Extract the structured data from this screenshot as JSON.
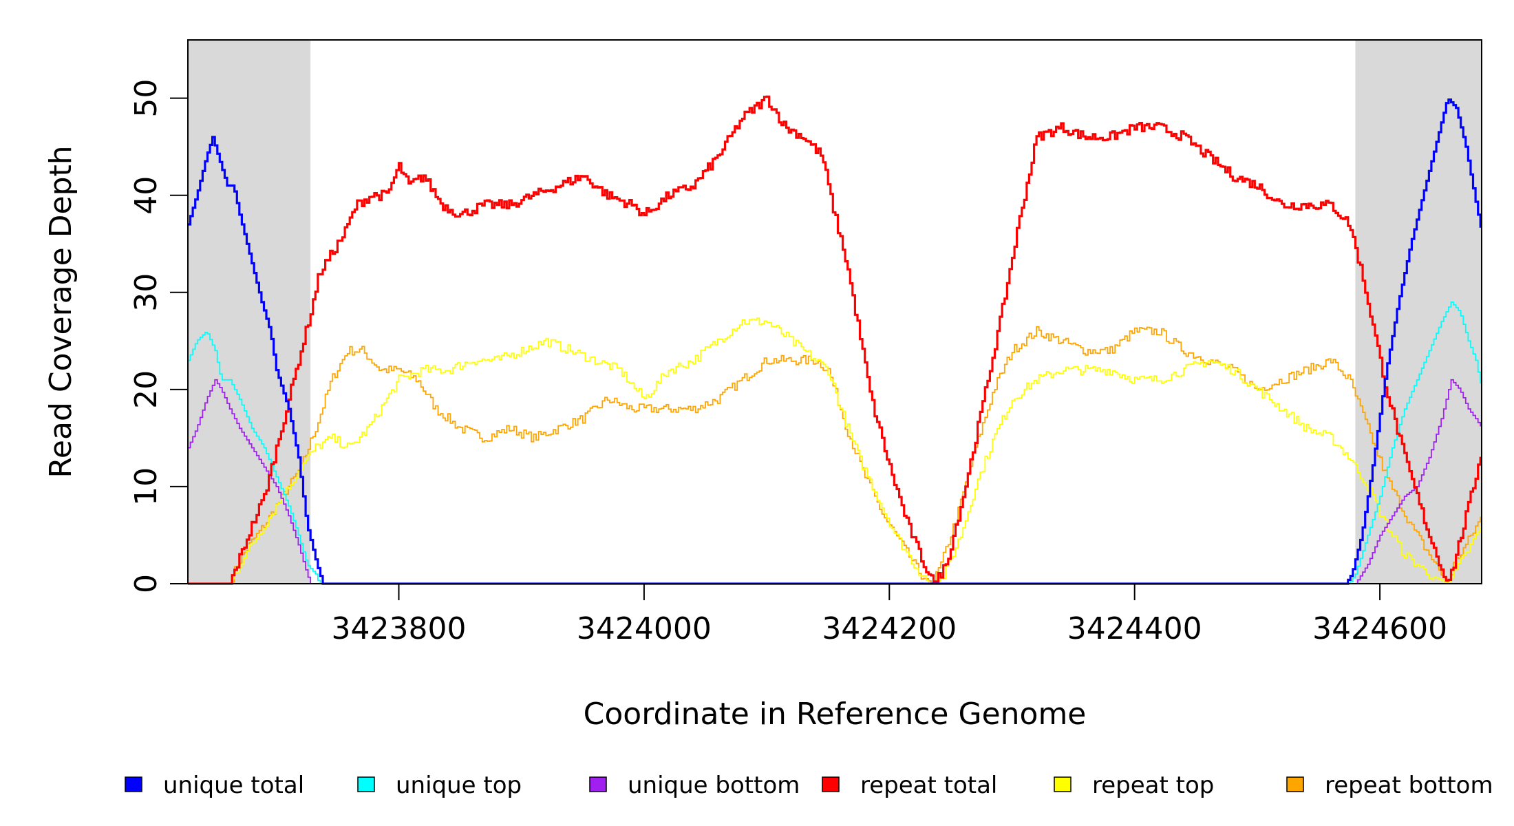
{
  "chart_data": {
    "type": "line",
    "title": "",
    "xlabel": "Coordinate in Reference Genome",
    "ylabel": "Read Coverage Depth",
    "xlim": [
      3423628,
      3424683
    ],
    "ylim": [
      0,
      56
    ],
    "x_ticks": [
      3423800,
      3424000,
      3424200,
      3424400,
      3424600
    ],
    "x_tick_labels": [
      "3423800",
      "3424000",
      "3424200",
      "3424400",
      "3424600"
    ],
    "y_ticks": [
      0,
      10,
      20,
      30,
      40,
      50
    ],
    "y_tick_labels": [
      "0",
      "10",
      "20",
      "30",
      "40",
      "50"
    ],
    "shaded_regions": [
      [
        3423628,
        3423728
      ],
      [
        3424580,
        3424683
      ]
    ],
    "shade_color": "#d9d9d9",
    "grid": false,
    "legend_position": "bottom",
    "legend": [
      {
        "label": "unique total",
        "color": "#0000ff"
      },
      {
        "label": "unique top",
        "color": "#00ffff"
      },
      {
        "label": "unique bottom",
        "color": "#a020f0"
      },
      {
        "label": "repeat total",
        "color": "#ff0000"
      },
      {
        "label": "repeat top",
        "color": "#ffff00"
      },
      {
        "label": "repeat bottom",
        "color": "#ffa500"
      }
    ],
    "series": [
      {
        "name": "unique total",
        "color": "#0000ff",
        "thick": true,
        "noise": 0,
        "x": [
          3423628,
          3423635,
          3423643,
          3423648,
          3423655,
          3423660,
          3423665,
          3423670,
          3423680,
          3423688,
          3423695,
          3423700,
          3423710,
          3423718,
          3423725,
          3423733,
          3423738,
          3424572,
          3424577,
          3424585,
          3424595,
          3424605,
          3424615,
          3424625,
          3424635,
          3424645,
          3424655,
          3424662,
          3424670,
          3424677,
          3424683
        ],
        "y": [
          37,
          40,
          44,
          46,
          43,
          41,
          41,
          38,
          33,
          29,
          26,
          22,
          18,
          13,
          6,
          2,
          0,
          0,
          1,
          5,
          13,
          22,
          29,
          35,
          40,
          45,
          50,
          49,
          45,
          40,
          36
        ]
      },
      {
        "name": "unique top",
        "color": "#00ffff",
        "thick": false,
        "noise": 0,
        "x": [
          3423628,
          3423635,
          3423643,
          3423650,
          3423655,
          3423662,
          3423670,
          3423680,
          3423690,
          3423700,
          3423710,
          3423718,
          3423725,
          3423732,
          3423735,
          3424575,
          3424580,
          3424590,
          3424600,
          3424610,
          3424620,
          3424630,
          3424640,
          3424650,
          3424658,
          3424665,
          3424672,
          3424678,
          3424683
        ],
        "y": [
          23,
          25,
          26,
          24,
          21,
          21,
          19,
          16,
          14,
          11,
          8,
          5,
          2,
          1,
          0,
          0,
          1,
          5,
          9,
          14,
          18,
          21,
          24,
          27,
          29,
          28,
          25,
          23,
          20
        ],
        "y_shift": 0
      },
      {
        "name": "unique bottom",
        "color": "#a020f0",
        "thick": false,
        "noise": 0,
        "x": [
          3423628,
          3423635,
          3423643,
          3423650,
          3423655,
          3423662,
          3423670,
          3423680,
          3423690,
          3423700,
          3423710,
          3423718,
          3423725,
          3423728,
          3424580,
          3424590,
          3424600,
          3424610,
          3424620,
          3424630,
          3424640,
          3424650,
          3424658,
          3424665,
          3424672,
          3424678,
          3424683
        ],
        "y": [
          14,
          16,
          19,
          21,
          20,
          18,
          16,
          14,
          12,
          10,
          7,
          4,
          1,
          0,
          0,
          2,
          5,
          7,
          9,
          10,
          13,
          17,
          21,
          20,
          18,
          17,
          16
        ]
      },
      {
        "name": "repeat total",
        "color": "#ff0000",
        "thick": true,
        "noise": 0.5,
        "x": [
          3423628,
          3423662,
          3423668,
          3423680,
          3423690,
          3423700,
          3423710,
          3423720,
          3423728,
          3423735,
          3423745,
          3423755,
          3423765,
          3423778,
          3423790,
          3423800,
          3423808,
          3423820,
          3423835,
          3423850,
          3423870,
          3423890,
          3423910,
          3423930,
          3423950,
          3423970,
          3423990,
          3424000,
          3424020,
          3424040,
          3424060,
          3424080,
          3424090,
          3424100,
          3424115,
          3424130,
          3424145,
          3424155,
          3424165,
          3424175,
          3424185,
          3424200,
          3424215,
          3424228,
          3424237,
          3424246,
          3424260,
          3424275,
          3424290,
          3424305,
          3424320,
          3424340,
          3424360,
          3424380,
          3424400,
          3424420,
          3424440,
          3424460,
          3424480,
          3424500,
          3424520,
          3424540,
          3424560,
          3424575,
          3424585,
          3424595,
          3424605,
          3424620,
          3424640,
          3424655,
          3424660,
          3424668,
          3424676,
          3424683
        ],
        "y": [
          0,
          0,
          2,
          6,
          9,
          14,
          19,
          24,
          28,
          32,
          34,
          36,
          39,
          40,
          40,
          43,
          41,
          42,
          39,
          38,
          39,
          39,
          40,
          41,
          42,
          40,
          39,
          38,
          40,
          41,
          44,
          48,
          49,
          50,
          47,
          46,
          44,
          38,
          33,
          26,
          19,
          12,
          6,
          2,
          0,
          2,
          9,
          18,
          27,
          37,
          46,
          47,
          46,
          46,
          47,
          47,
          46,
          44,
          42,
          41,
          39,
          39,
          39,
          37,
          32,
          26,
          20,
          13,
          5,
          0,
          2,
          6,
          10,
          14
        ]
      },
      {
        "name": "repeat top",
        "color": "#ffff00",
        "thick": false,
        "noise": 0.5,
        "x": [
          3423628,
          3423662,
          3423670,
          3423680,
          3423690,
          3423700,
          3423710,
          3423720,
          3423732,
          3423745,
          3423760,
          3423775,
          3423790,
          3423800,
          3423820,
          3423840,
          3423860,
          3423880,
          3423900,
          3423920,
          3423940,
          3423960,
          3423980,
          3424000,
          3424020,
          3424040,
          3424060,
          3424080,
          3424100,
          3424120,
          3424140,
          3424150,
          3424160,
          3424175,
          3424190,
          3424205,
          3424220,
          3424232,
          3424238,
          3424245,
          3424258,
          3424270,
          3424285,
          3424300,
          3424320,
          3424340,
          3424360,
          3424380,
          3424400,
          3424420,
          3424440,
          3424460,
          3424480,
          3424500,
          3424520,
          3424540,
          3424560,
          3424575,
          3424590,
          3424605,
          3424620,
          3424640,
          3424655,
          3424660,
          3424670,
          3424683
        ],
        "y": [
          0,
          0,
          2,
          4,
          6,
          8,
          10,
          12,
          14,
          15,
          14,
          16,
          19,
          21,
          22,
          22,
          23,
          23,
          24,
          25,
          24,
          23,
          22,
          19,
          22,
          23,
          25,
          27,
          27,
          25,
          23,
          22,
          18,
          13,
          9,
          5,
          2,
          0,
          0,
          1,
          5,
          10,
          15,
          19,
          21,
          22,
          22,
          22,
          21,
          21,
          22,
          23,
          22,
          20,
          18,
          16,
          15,
          13,
          10,
          6,
          3,
          1,
          0,
          1,
          3,
          6
        ]
      },
      {
        "name": "repeat bottom",
        "color": "#ffa500",
        "thick": false,
        "noise": 0.5,
        "x": [
          3423628,
          3423662,
          3423668,
          3423678,
          3423690,
          3423700,
          3423710,
          3423720,
          3423732,
          3423745,
          3423758,
          3423770,
          3423785,
          3423800,
          3423815,
          3423830,
          3423850,
          3423870,
          3423890,
          3423910,
          3423930,
          3423950,
          3423970,
          3423990,
          3424000,
          3424020,
          3424040,
          3424060,
          3424080,
          3424100,
          3424120,
          3424140,
          3424150,
          3424165,
          3424180,
          3424195,
          3424210,
          3424225,
          3424235,
          3424242,
          3424255,
          3424270,
          3424285,
          3424300,
          3424320,
          3424340,
          3424360,
          3424380,
          3424400,
          3424420,
          3424440,
          3424460,
          3424480,
          3424500,
          3424520,
          3424540,
          3424560,
          3424575,
          3424590,
          3424605,
          3424625,
          3424645,
          3424655,
          3424660,
          3424670,
          3424683
        ],
        "y": [
          0,
          0,
          2,
          4,
          6,
          8,
          10,
          12,
          16,
          21,
          24,
          24,
          22,
          22,
          21,
          18,
          16,
          15,
          16,
          15,
          16,
          17,
          19,
          18,
          18,
          18,
          18,
          19,
          21,
          23,
          23,
          23,
          22,
          16,
          11,
          7,
          4,
          1,
          0,
          2,
          7,
          14,
          20,
          24,
          26,
          25,
          24,
          24,
          26,
          26,
          24,
          23,
          22,
          20,
          21,
          22,
          23,
          21,
          16,
          11,
          6,
          2,
          0,
          2,
          4,
          7
        ]
      }
    ]
  }
}
